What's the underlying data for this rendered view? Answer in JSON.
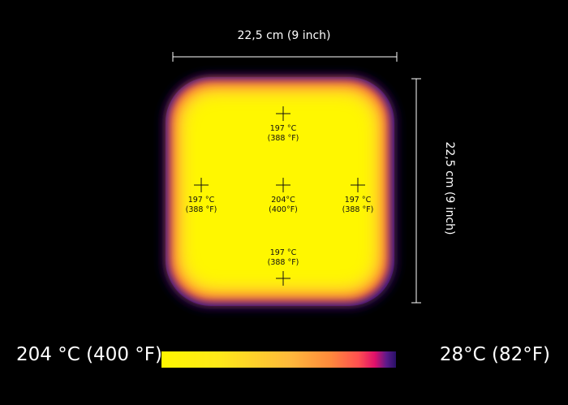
{
  "dimensions": {
    "width_label": "22,5 cm (9 inch)",
    "height_label": "22,5 cm (9 inch)"
  },
  "points": {
    "top": {
      "c": "197 °C",
      "f": "(388 °F)"
    },
    "left": {
      "c": "197 °C",
      "f": "(388 °F)"
    },
    "center": {
      "c": "204°C",
      "f": "(400°F)"
    },
    "right": {
      "c": "197 °C",
      "f": "(388 °F)"
    },
    "bottom": {
      "c": "197 °C",
      "f": "(388 °F)"
    }
  },
  "scale": {
    "hot_label": "204 °C (400 °F)",
    "cold_label": "28°C (82°F)",
    "colors": [
      "#fff700",
      "#ffb93c",
      "#ff5050",
      "#e0106a",
      "#281066"
    ]
  }
}
